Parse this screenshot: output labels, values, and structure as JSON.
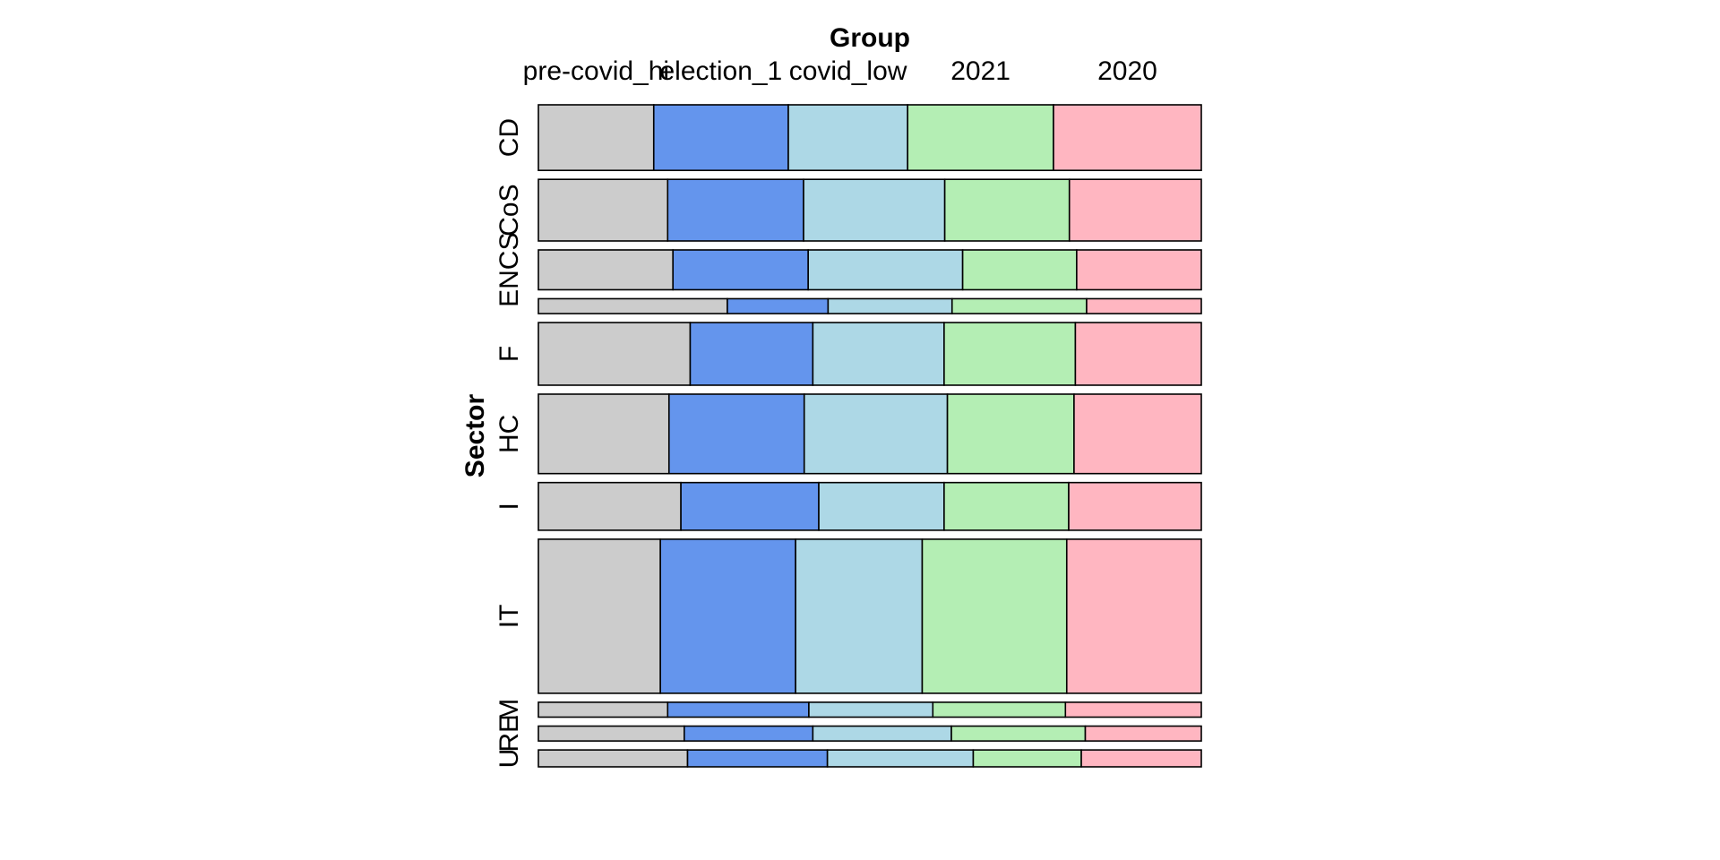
{
  "chart_data": {
    "type": "mosaic",
    "xlabel": "Group",
    "ylabel": "Sector",
    "groups": [
      "pre-covid_hi",
      "election_1",
      "covid_low",
      "2021",
      "2020"
    ],
    "group_colors": [
      "#cccccc",
      "#6495ed",
      "#add8e6",
      "#b4eeb4",
      "#ffb6c1"
    ],
    "sectors": [
      {
        "label": "CD",
        "proportion": 0.0978,
        "shares": [
          0.174,
          0.203,
          0.18,
          0.22,
          0.223
        ]
      },
      {
        "label": "CoS",
        "proportion": 0.0919,
        "shares": [
          0.195,
          0.205,
          0.213,
          0.188,
          0.199
        ]
      },
      {
        "label": "ENCS",
        "proportion": 0.0594,
        "shares": [
          0.203,
          0.204,
          0.233,
          0.172,
          0.188
        ]
      },
      {
        "label": "",
        "proportion": 0.0222,
        "shares": [
          0.285,
          0.152,
          0.187,
          0.203,
          0.173
        ]
      },
      {
        "label": "F",
        "proportion": 0.0934,
        "shares": [
          0.229,
          0.185,
          0.198,
          0.198,
          0.19
        ]
      },
      {
        "label": "HC",
        "proportion": 0.1185,
        "shares": [
          0.197,
          0.204,
          0.216,
          0.191,
          0.192
        ]
      },
      {
        "label": "I",
        "proportion": 0.0711,
        "shares": [
          0.215,
          0.208,
          0.189,
          0.188,
          0.2
        ]
      },
      {
        "label": "IT",
        "proportion": 0.2298,
        "shares": [
          0.184,
          0.204,
          0.191,
          0.218,
          0.203
        ]
      },
      {
        "label": "M",
        "proportion": 0.0222,
        "shares": [
          0.195,
          0.213,
          0.187,
          0.2,
          0.205
        ]
      },
      {
        "label": "RE",
        "proportion": 0.0222,
        "shares": [
          0.22,
          0.194,
          0.209,
          0.202,
          0.175
        ]
      },
      {
        "label": "U",
        "proportion": 0.0252,
        "shares": [
          0.225,
          0.211,
          0.22,
          0.163,
          0.181
        ]
      }
    ]
  }
}
